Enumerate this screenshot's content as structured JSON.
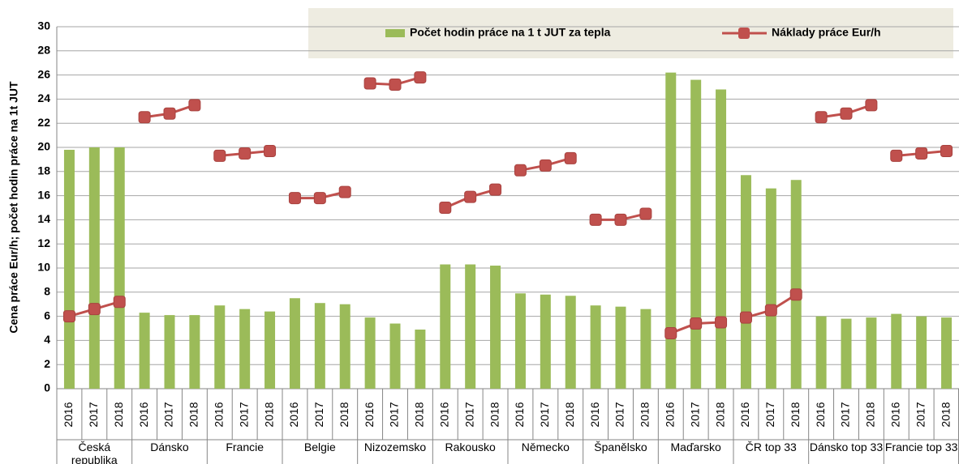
{
  "chart_data": {
    "type": "bar-line",
    "y_label": "Cena práce Eur/h; počet hodin práce na 1t JUT",
    "groups": [
      {
        "name": "Česká republika",
        "categories": [
          "2016",
          "2017",
          "2018"
        ]
      },
      {
        "name": "Dánsko",
        "categories": [
          "2016",
          "2017",
          "2018"
        ]
      },
      {
        "name": "Francie",
        "categories": [
          "2016",
          "2017",
          "2018"
        ]
      },
      {
        "name": "Belgie",
        "categories": [
          "2016",
          "2017",
          "2018"
        ]
      },
      {
        "name": "Nizozemsko",
        "categories": [
          "2016",
          "2017",
          "2018"
        ]
      },
      {
        "name": "Rakousko",
        "categories": [
          "2016",
          "2017",
          "2018"
        ]
      },
      {
        "name": "Německo",
        "categories": [
          "2016",
          "2017",
          "2018"
        ]
      },
      {
        "name": "Španělsko",
        "categories": [
          "2016",
          "2017",
          "2018"
        ]
      },
      {
        "name": "Maďarsko",
        "categories": [
          "2016",
          "2017",
          "2018"
        ]
      },
      {
        "name": "ČR top 33",
        "categories": [
          "2016",
          "2017",
          "2018"
        ]
      },
      {
        "name": "Dánsko top 33",
        "categories": [
          "2016",
          "2017",
          "2018"
        ]
      },
      {
        "name": "Francie top 33",
        "categories": [
          "2016",
          "2017",
          "2018"
        ]
      }
    ],
    "series": [
      {
        "name": "Počet hodin práce na 1 t JUT za tepla",
        "type": "bar",
        "color": "#9bbb59",
        "values": [
          19.8,
          20.0,
          20.0,
          6.3,
          6.1,
          6.1,
          6.9,
          6.6,
          6.4,
          7.5,
          7.1,
          7.0,
          5.9,
          5.4,
          4.9,
          10.3,
          10.3,
          10.2,
          7.9,
          7.8,
          7.7,
          6.9,
          6.8,
          6.6,
          26.2,
          25.6,
          24.8,
          17.7,
          16.6,
          17.3,
          6.0,
          5.8,
          5.9,
          6.2,
          6.0,
          5.9
        ]
      },
      {
        "name": "Náklady práce Eur/h",
        "type": "line",
        "color": "#c0504d",
        "values": [
          6.0,
          6.6,
          7.2,
          22.5,
          22.8,
          23.5,
          19.3,
          19.5,
          19.7,
          15.8,
          15.8,
          16.3,
          25.3,
          25.2,
          25.8,
          15.0,
          15.9,
          16.5,
          18.1,
          18.5,
          19.1,
          14.0,
          14.0,
          14.5,
          4.6,
          5.4,
          5.5,
          5.9,
          6.5,
          7.8,
          22.5,
          22.8,
          23.5,
          19.3,
          19.5,
          19.7
        ]
      }
    ],
    "ylim": [
      0,
      30
    ],
    "yticks": [
      0,
      2,
      4,
      6,
      8,
      10,
      12,
      14,
      16,
      18,
      20,
      22,
      24,
      26,
      28,
      30
    ],
    "grid": true
  }
}
